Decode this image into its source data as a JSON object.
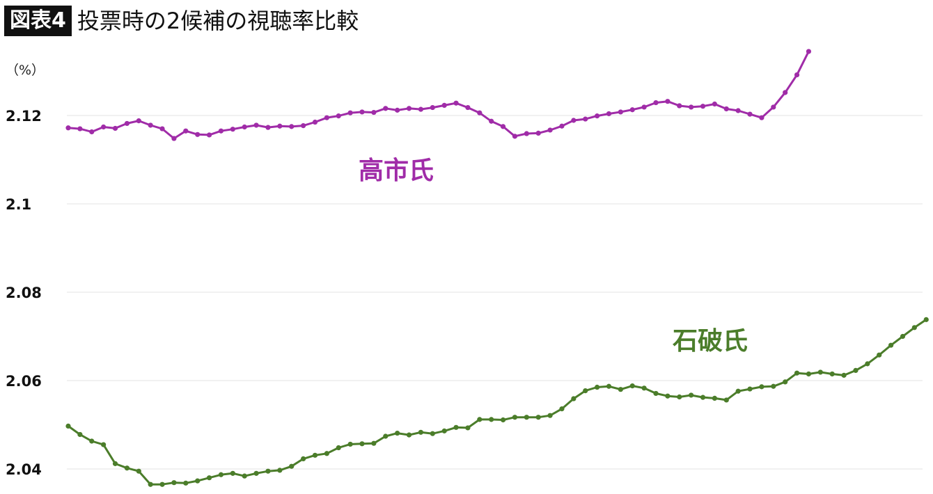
{
  "header": {
    "figure_label": "図表4",
    "title": "投票時の2候補の視聴率比較"
  },
  "unit_label": "（%）",
  "colors": {
    "takaichi": "#a02ca8",
    "ishiba": "#4b7d2a",
    "grid": "#e3e3e3"
  },
  "chart_data": {
    "type": "line",
    "title": "投票時の2候補の視聴率比較",
    "ylabel": "（%）",
    "ylim": [
      2.035,
      2.136
    ],
    "yticks": [
      2.04,
      2.06,
      2.08,
      2.1,
      2.12
    ],
    "ytick_labels": [
      "2.04",
      "2.06",
      "2.08",
      "2.1",
      "2.12"
    ],
    "grid": true,
    "legend": "inline-labels",
    "series": [
      {
        "name": "高市氏",
        "color": "#a02ca8",
        "x": [
          0,
          1,
          2,
          3,
          4,
          5,
          6,
          7,
          8,
          9,
          10,
          11,
          12,
          13,
          14,
          15,
          16,
          17,
          18,
          19,
          20,
          21,
          22,
          23,
          24,
          25,
          26,
          27,
          28,
          29,
          30,
          31,
          32,
          33,
          34,
          35,
          36,
          37,
          38,
          39,
          40,
          41,
          42,
          43,
          44,
          45,
          46,
          47,
          48,
          49,
          50,
          51,
          52,
          53,
          54,
          55,
          56,
          57,
          58,
          59,
          60,
          61,
          62,
          63
        ],
        "values": [
          2.1172,
          2.117,
          2.1163,
          2.1174,
          2.1171,
          2.1182,
          2.1188,
          2.1178,
          2.117,
          2.1148,
          2.1165,
          2.1157,
          2.1156,
          2.1165,
          2.1169,
          2.1174,
          2.1178,
          2.1173,
          2.1176,
          2.1175,
          2.1177,
          2.1185,
          2.1195,
          2.1199,
          2.1206,
          2.1208,
          2.1207,
          2.1216,
          2.1212,
          2.1216,
          2.1214,
          2.1218,
          2.1223,
          2.1228,
          2.1218,
          2.1206,
          2.1187,
          2.1175,
          2.1153,
          2.1159,
          2.116,
          2.1167,
          2.1176,
          2.1189,
          2.1192,
          2.1199,
          2.1204,
          2.1208,
          2.1213,
          2.1219,
          2.1229,
          2.1232,
          2.1222,
          2.1219,
          2.1221,
          2.1226,
          2.1215,
          2.1211,
          2.1203,
          2.1195,
          2.1219,
          2.1252,
          2.1292,
          2.1345
        ]
      },
      {
        "name": "石破氏",
        "color": "#4b7d2a",
        "x": [
          0,
          1,
          2,
          3,
          4,
          5,
          6,
          7,
          8,
          9,
          10,
          11,
          12,
          13,
          14,
          15,
          16,
          17,
          18,
          19,
          20,
          21,
          22,
          23,
          24,
          25,
          26,
          27,
          28,
          29,
          30,
          31,
          32,
          33,
          34,
          35,
          36,
          37,
          38,
          39,
          40,
          41,
          42,
          43,
          44,
          45,
          46,
          47,
          48,
          49,
          50,
          51,
          52,
          53,
          54,
          55,
          56,
          57,
          58,
          59,
          60,
          61,
          62,
          63,
          64,
          65,
          66,
          67,
          68,
          69,
          70,
          71,
          72,
          73
        ],
        "values": [
          2.0497,
          2.0478,
          2.0463,
          2.0455,
          2.0412,
          2.0402,
          2.0395,
          2.0365,
          2.0365,
          2.0369,
          2.0368,
          2.0373,
          2.038,
          2.0387,
          2.039,
          2.0384,
          2.039,
          2.0395,
          2.0397,
          2.0406,
          2.0423,
          2.0431,
          2.0435,
          2.0448,
          2.0456,
          2.0457,
          2.0458,
          2.0474,
          2.0481,
          2.0477,
          2.0483,
          2.048,
          2.0486,
          2.0494,
          2.0493,
          2.0512,
          2.0512,
          2.0511,
          2.0517,
          2.0517,
          2.0517,
          2.0521,
          2.0536,
          2.0559,
          2.0577,
          2.0585,
          2.0587,
          2.058,
          2.0588,
          2.0583,
          2.0571,
          2.0565,
          2.0563,
          2.0567,
          2.0562,
          2.056,
          2.0556,
          2.0576,
          2.0581,
          2.0586,
          2.0587,
          2.0597,
          2.0617,
          2.0615,
          2.0619,
          2.0615,
          2.0612,
          2.0623,
          2.0638,
          2.0658,
          2.068,
          2.07,
          2.072,
          2.0738
        ]
      }
    ],
    "annotations": [
      {
        "text": "高市氏",
        "series": "高市氏"
      },
      {
        "text": "石破氏",
        "series": "石破氏"
      }
    ]
  }
}
